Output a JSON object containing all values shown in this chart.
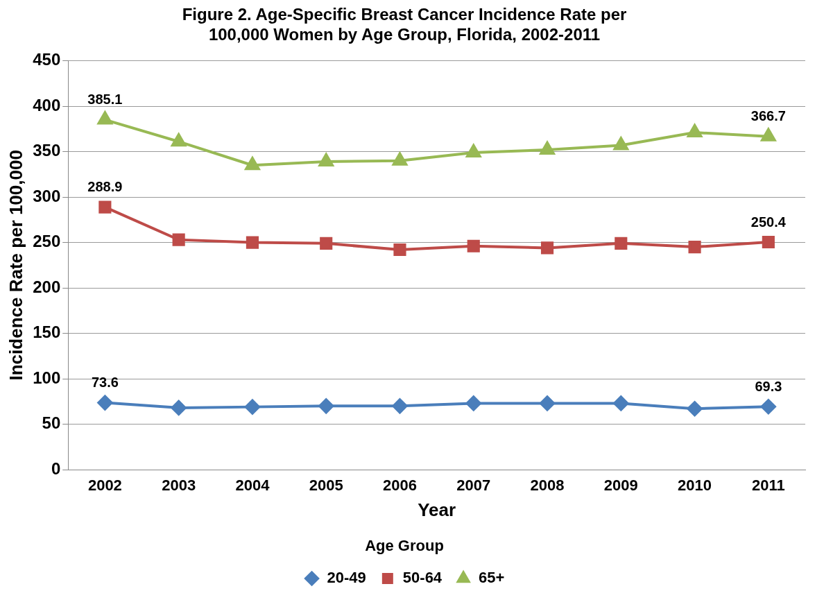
{
  "chart_data": {
    "type": "line",
    "title": "Figure 2. Age-Specific Breast Cancer Incidence Rate per\n100,000 Women by Age Group, Florida, 2002-2011",
    "xlabel": "Year",
    "ylabel": "Incidence Rate per 100,000",
    "legend_title": "Age Group",
    "categories": [
      "2002",
      "2003",
      "2004",
      "2005",
      "2006",
      "2007",
      "2008",
      "2009",
      "2010",
      "2011"
    ],
    "series": [
      {
        "name": "20-49",
        "color": "#4a7ebb",
        "marker": "diamond",
        "values": [
          73.6,
          68,
          69,
          70,
          70,
          73,
          73,
          73,
          67,
          69.3
        ],
        "value_labels": [
          "73.6",
          null,
          null,
          null,
          null,
          null,
          null,
          null,
          null,
          "69.3"
        ]
      },
      {
        "name": "50-64",
        "color": "#be4b48",
        "marker": "square",
        "values": [
          288.9,
          253,
          250,
          249,
          242,
          246,
          244,
          249,
          245,
          250.4
        ],
        "value_labels": [
          "288.9",
          null,
          null,
          null,
          null,
          null,
          null,
          null,
          null,
          "250.4"
        ]
      },
      {
        "name": "65+",
        "color": "#98b954",
        "marker": "triangle",
        "values": [
          385.1,
          361,
          335,
          339,
          340,
          349,
          352,
          357,
          371,
          366.7
        ],
        "value_labels": [
          "385.1",
          null,
          null,
          null,
          null,
          null,
          null,
          null,
          null,
          "366.7"
        ]
      }
    ],
    "ylim": [
      0,
      450
    ],
    "yticks": [
      0,
      50,
      100,
      150,
      200,
      250,
      300,
      350,
      400,
      450
    ],
    "grid": "y",
    "legend": "bottom"
  }
}
